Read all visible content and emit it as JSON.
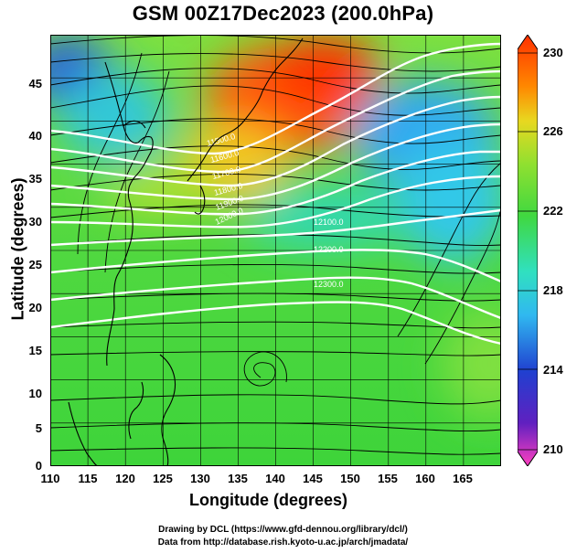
{
  "title": "GSM 00Z17Dec2023 (200.0hPa)",
  "map": {
    "type": "wind-streamline-map",
    "xlabel": "Longitude (degrees)",
    "ylabel": "Latitude  (degrees)",
    "x_ticks": [
      "110",
      "115",
      "120",
      "125",
      "130",
      "135",
      "140",
      "145",
      "150",
      "155",
      "160",
      "165"
    ],
    "y_ticks": [
      "0",
      "5",
      "10",
      "15",
      "20",
      "25",
      "30",
      "35",
      "40",
      "45"
    ],
    "xlim": [
      110,
      170
    ],
    "ylim": [
      0,
      50
    ],
    "contour_labels": [
      "11500.0",
      "11600.0",
      "11700.0",
      "11800.0",
      "11900.0",
      "12000.0",
      "12100.0",
      "12200.0",
      "12300.0"
    ],
    "colorbar": {
      "ticks": [
        "230",
        "226",
        "222",
        "218",
        "214",
        "210"
      ],
      "range": [
        210,
        230
      ],
      "colors": [
        "#ff40c0",
        "#2020d0",
        "#20a0ff",
        "#30e0e0",
        "#30e030",
        "#60e030",
        "#c0e020",
        "#ffa000",
        "#ff3000"
      ]
    }
  },
  "credits": {
    "line1": "Drawing by DCL (https://www.gfd-dennou.org/library/dcl/)",
    "line2": "Data from http://database.rish.kyoto-u.ac.jp/arch/jmadata/"
  }
}
